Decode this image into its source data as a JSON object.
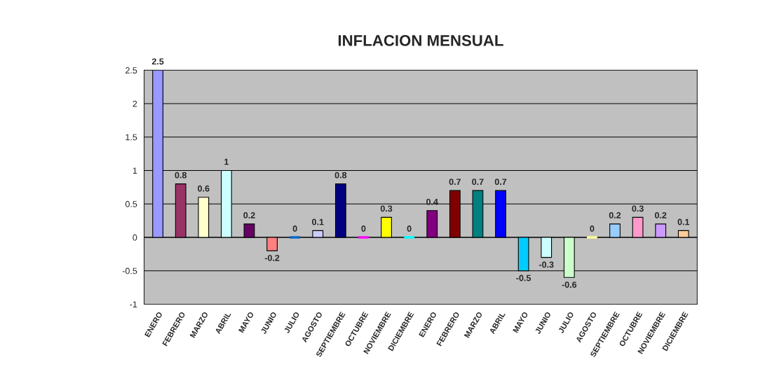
{
  "chart_data": {
    "type": "bar",
    "title": "INFLACION MENSUAL",
    "categories": [
      "ENERO",
      "FEBRERO",
      "MARZO",
      "ABRIL",
      "MAYO",
      "JUNIO",
      "JULIO",
      "AGOSTO",
      "SEPTIEMBRE",
      "OCTUBRE",
      "NOVIEMBRE",
      "DICIEMBRE",
      "ENERO",
      "FEBRERO",
      "MARZO",
      "ABRIL",
      "MAYO",
      "JUNIO",
      "JULIO",
      "AGOSTO",
      "SEPTIEMBRE",
      "OCTUBRE",
      "NOVIEMBRE",
      "DICIEMBRE"
    ],
    "values": [
      2.5,
      0.8,
      0.6,
      1,
      0.2,
      -0.2,
      0,
      0.1,
      0.8,
      0,
      0.3,
      0,
      0.4,
      0.7,
      0.7,
      0.7,
      -0.5,
      -0.3,
      -0.6,
      0,
      0.2,
      0.3,
      0.2,
      0.1
    ],
    "colors": [
      "#9999ff",
      "#993366",
      "#ffffcc",
      "#ccffff",
      "#660066",
      "#ff8080",
      "#0066cc",
      "#ccccff",
      "#000080",
      "#ff00ff",
      "#ffff00",
      "#00ffff",
      "#800080",
      "#800000",
      "#008080",
      "#0000ff",
      "#00ccff",
      "#ccffff",
      "#ccffcc",
      "#ffff99",
      "#99ccff",
      "#ff99cc",
      "#cc99ff",
      "#ffcc99"
    ],
    "ylim": [
      -1,
      2.5
    ],
    "yticks": [
      -1,
      -0.5,
      0,
      0.5,
      1,
      1.5,
      2,
      2.5
    ],
    "grid": "y",
    "data_labels": true
  }
}
